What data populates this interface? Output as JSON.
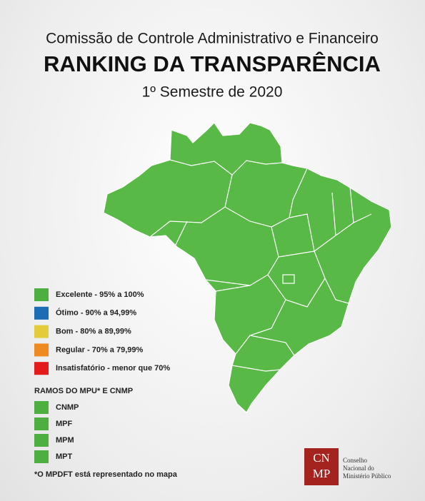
{
  "header": {
    "subtitle": "Comissão de Controle Administrativo e Financeiro",
    "title": "RANKING  DA TRANSPARÊNCIA",
    "period": "1º Semestre de 2020"
  },
  "legend": {
    "items": [
      {
        "label": "Excelente - 95% a 100%",
        "color": "#4caf3f"
      },
      {
        "label": "Ótimo - 90% a 94,99%",
        "color": "#1d6db5"
      },
      {
        "label": "Bom - 80% a 89,99%",
        "color": "#e3cc3a"
      },
      {
        "label": "Regular - 70% a 79,99%",
        "color": "#ef8a23"
      },
      {
        "label": "Insatisfatório - menor que 70%",
        "color": "#e31b1b"
      }
    ]
  },
  "branches": {
    "title": "RAMOS DO MPU* E CNMP",
    "items": [
      {
        "label": "CNMP",
        "color": "#4caf3f"
      },
      {
        "label": "MPF",
        "color": "#4caf3f"
      },
      {
        "label": "MPM",
        "color": "#4caf3f"
      },
      {
        "label": "MPT",
        "color": "#4caf3f"
      }
    ]
  },
  "footnote": "*O MPDFT está representado no mapa",
  "logo": {
    "mark_top": "CN",
    "mark_bottom": "MP",
    "lines": [
      "Conselho",
      "Nacional do",
      "Ministério Público"
    ]
  }
}
